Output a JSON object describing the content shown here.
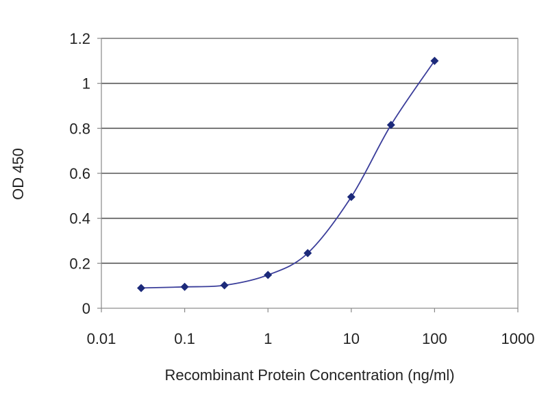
{
  "chart_data": {
    "type": "line",
    "title": "",
    "xlabel": "Recombinant Protein Concentration (ng/ml)",
    "ylabel": "OD 450",
    "x_scale": "log",
    "xlim": [
      0.01,
      1000
    ],
    "ylim": [
      0,
      1.2
    ],
    "x_ticks": [
      0.01,
      0.1,
      1,
      10,
      100,
      1000
    ],
    "x_tick_labels": [
      "0.01",
      "0.1",
      "1",
      "10",
      "100",
      "1000"
    ],
    "y_ticks": [
      0,
      0.2,
      0.4,
      0.6,
      0.8,
      1,
      1.2
    ],
    "y_tick_labels": [
      "0",
      "0.2",
      "0.4",
      "0.6",
      "0.8",
      "1",
      "1.2"
    ],
    "grid": "horizontal",
    "legend": "none",
    "series": [
      {
        "x": [
          0.03,
          0.1,
          0.3,
          1,
          3,
          10,
          30,
          100
        ],
        "y": [
          0.09,
          0.095,
          0.102,
          0.148,
          0.245,
          0.495,
          0.815,
          1.1
        ],
        "color": "#1c2a7a"
      }
    ]
  }
}
